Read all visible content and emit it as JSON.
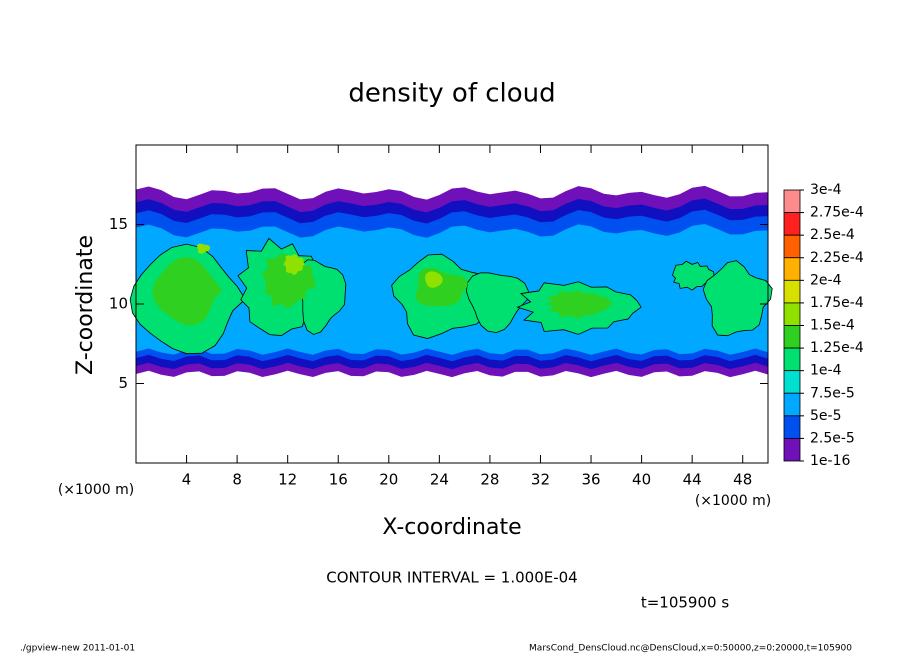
{
  "chart_data": {
    "type": "contour",
    "title": "density of cloud",
    "xlabel": "X-coordinate",
    "ylabel": "Z-coordinate",
    "x_unit": "(×1000 m)",
    "xlim": [
      0,
      50
    ],
    "xticks": [
      4,
      8,
      12,
      16,
      20,
      24,
      28,
      32,
      36,
      40,
      44,
      48
    ],
    "ylim": [
      0,
      20
    ],
    "yticks": [
      5,
      10,
      15
    ],
    "colorbar": {
      "levels": [
        {
          "value": 0.0003,
          "label": "3e-4"
        },
        {
          "value": 0.000275,
          "label": "2.75e-4"
        },
        {
          "value": 0.00025,
          "label": "2.5e-4"
        },
        {
          "value": 0.000225,
          "label": "2.25e-4"
        },
        {
          "value": 0.0002,
          "label": "2e-4"
        },
        {
          "value": 0.000175,
          "label": "1.75e-4"
        },
        {
          "value": 0.00015,
          "label": "1.5e-4"
        },
        {
          "value": 0.000125,
          "label": "1.25e-4"
        },
        {
          "value": 0.0001,
          "label": "1e-4"
        },
        {
          "value": 7.5e-05,
          "label": "7.5e-5"
        },
        {
          "value": 5e-05,
          "label": "5e-5"
        },
        {
          "value": 2.5e-05,
          "label": "2.5e-5"
        },
        {
          "value": 1e-16,
          "label": "1e-16"
        }
      ],
      "colors": [
        "#ff8c8c",
        "#ff2020",
        "#ff6000",
        "#ffb000",
        "#d8e000",
        "#90e000",
        "#30d020",
        "#00e070",
        "#00e0d0",
        "#00a8ff",
        "#0050f0",
        "#1010c0",
        "#7010b8"
      ]
    },
    "contour_interval": "CONTOUR INTERVAL = 1.000E-04",
    "time_label": "t=105900 s",
    "footer_left": "./gpview-new   2011-01-01",
    "footer_right": "MarsCond_DensCloud.nc@DensCloud,x=0:50000,z=0:20000,t=105900"
  }
}
